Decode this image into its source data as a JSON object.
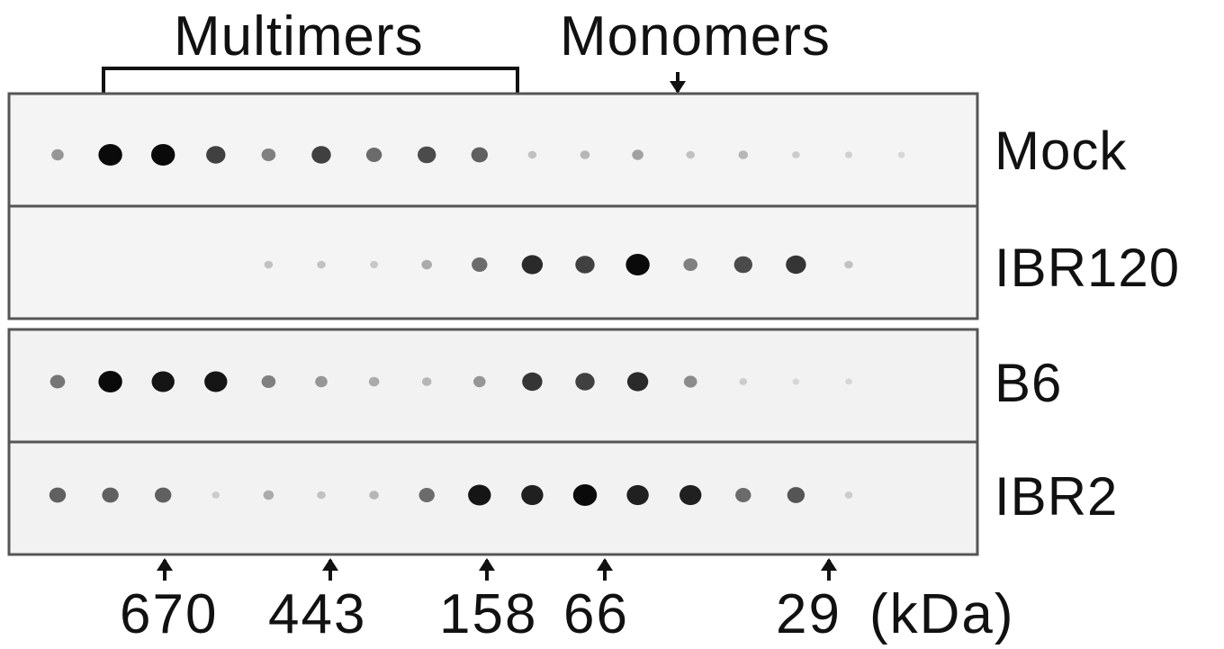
{
  "header": {
    "multimers_label": "Multimers",
    "monomers_label": "Monomers"
  },
  "lanes": [
    {
      "label": "Mock",
      "intensities": [
        0.35,
        1.0,
        1.0,
        0.75,
        0.45,
        0.75,
        0.55,
        0.7,
        0.6,
        0.15,
        0.2,
        0.3,
        0.15,
        0.2,
        0.1,
        0.08,
        0.05
      ]
    },
    {
      "label": "IBR120",
      "intensities": [
        0,
        0,
        0,
        0,
        0.15,
        0.15,
        0.12,
        0.25,
        0.55,
        0.85,
        0.75,
        1.0,
        0.45,
        0.7,
        0.8,
        0.15,
        0
      ]
    },
    {
      "label": "B6",
      "intensities": [
        0.5,
        1.0,
        0.95,
        0.95,
        0.45,
        0.35,
        0.25,
        0.2,
        0.35,
        0.8,
        0.75,
        0.85,
        0.4,
        0.1,
        0.05,
        0.05,
        0
      ]
    },
    {
      "label": "IBR2",
      "intensities": [
        0.6,
        0.6,
        0.6,
        0.1,
        0.25,
        0.15,
        0.2,
        0.55,
        0.95,
        0.9,
        1.0,
        0.9,
        0.9,
        0.55,
        0.65,
        0.1,
        0
      ]
    }
  ],
  "markers": [
    {
      "label": "670",
      "fraction": 2
    },
    {
      "label": "443",
      "fraction": 5
    },
    {
      "label": "158",
      "fraction": 8
    },
    {
      "label": "66",
      "fraction": 10
    },
    {
      "label": "29",
      "fraction": 14
    }
  ],
  "unit_label": "(kDa)",
  "monomer_marker_fraction": 11.2
}
